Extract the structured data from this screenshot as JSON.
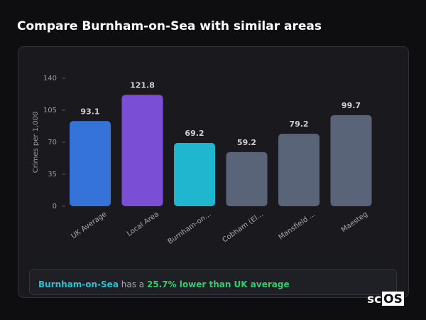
{
  "chart_data": {
    "type": "bar",
    "title": "Compare Burnham-on-Sea with similar areas",
    "y_label": "Crimes per 1,000",
    "categories": [
      "UK Average",
      "Local Area",
      "Burnham-on...",
      "Cobham (El...",
      "Mansfield ...",
      "Maesteg"
    ],
    "values": [
      93.1,
      121.8,
      69.2,
      59.2,
      79.2,
      99.7
    ],
    "colors": [
      "#3573d9",
      "#7a4fd6",
      "#20b6d0",
      "#5a6478",
      "#5a6478",
      "#5a6478"
    ],
    "ylim": [
      0,
      140
    ],
    "yticks": [
      0,
      35,
      70,
      105,
      140
    ],
    "grid": false
  },
  "summary": {
    "area": "Burnham-on-Sea",
    "connector": "has a",
    "comparison": "25.7% lower than UK average"
  },
  "logo": {
    "prefix": "sc",
    "box": "OS"
  }
}
